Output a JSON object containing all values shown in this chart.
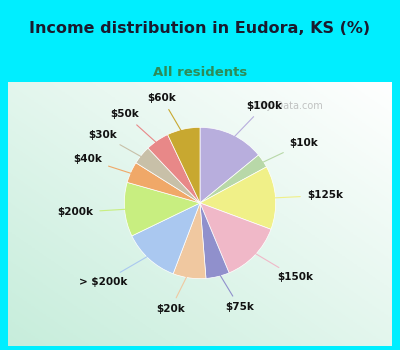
{
  "title": "Income distribution in Eudora, KS (%)",
  "subtitle": "All residents",
  "title_color": "#1a1a2e",
  "subtitle_color": "#2e8b57",
  "bg_cyan": "#00eeff",
  "bg_inner_color": "#e8f5ee",
  "watermark": "City-Data.com",
  "labels": [
    "$100k",
    "$10k",
    "$125k",
    "$150k",
    "$75k",
    "$20k",
    "> $200k",
    "$200k",
    "$40k",
    "$30k",
    "$50k",
    "$60k"
  ],
  "values": [
    14.0,
    3.0,
    13.5,
    13.0,
    5.0,
    7.0,
    12.0,
    11.5,
    4.5,
    4.0,
    5.0,
    7.0
  ],
  "colors": [
    "#b8aedd",
    "#b8d8a8",
    "#f0f088",
    "#f0b8c8",
    "#9090cc",
    "#f0c8a0",
    "#aac8f0",
    "#c8ee80",
    "#f0a868",
    "#c8c0a8",
    "#e88888",
    "#c8a830"
  ],
  "label_fontsize": 7.5,
  "figsize": [
    4.0,
    3.5
  ],
  "dpi": 100
}
